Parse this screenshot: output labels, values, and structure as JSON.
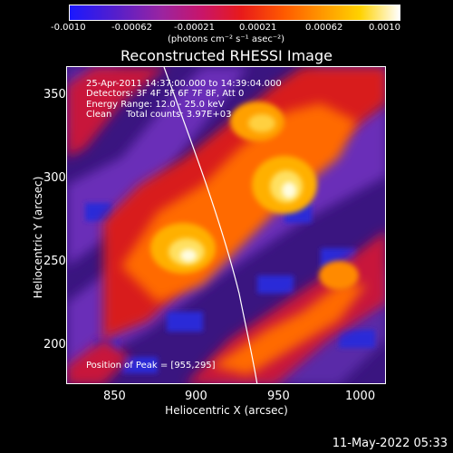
{
  "title": "Reconstructed RHESSI Image",
  "colorbar": {
    "ticks": [
      "-0.0010",
      "-0.00062",
      "-0.00021",
      "0.00021",
      "0.00062",
      "0.0010"
    ],
    "unit": "(photons cm⁻² s⁻¹ asec⁻²)",
    "colors": [
      "#1a18ff",
      "#9b24a0",
      "#e81a1a",
      "#ff9a00",
      "#ffffff"
    ]
  },
  "info": {
    "time_range": "25-Apr-2011 14:37:00.000 to 14:39:04.000",
    "detectors": "Detectors: 3F 4F 5F 6F 7F 8F, Att 0",
    "energy": "Energy Range: 12.0 - 25.0 keV",
    "clean": "Clean     Total counts: 3.97E+03",
    "peak": "Position of Peak = [955,295]"
  },
  "axes": {
    "xlabel": "Heliocentric X (arcsec)",
    "ylabel": "Heliocentric Y (arcsec)",
    "xticks": [
      "850",
      "900",
      "950",
      "1000"
    ],
    "yticks": [
      "350",
      "300",
      "250",
      "200"
    ]
  },
  "timestamp": "11-May-2022 05:33"
}
